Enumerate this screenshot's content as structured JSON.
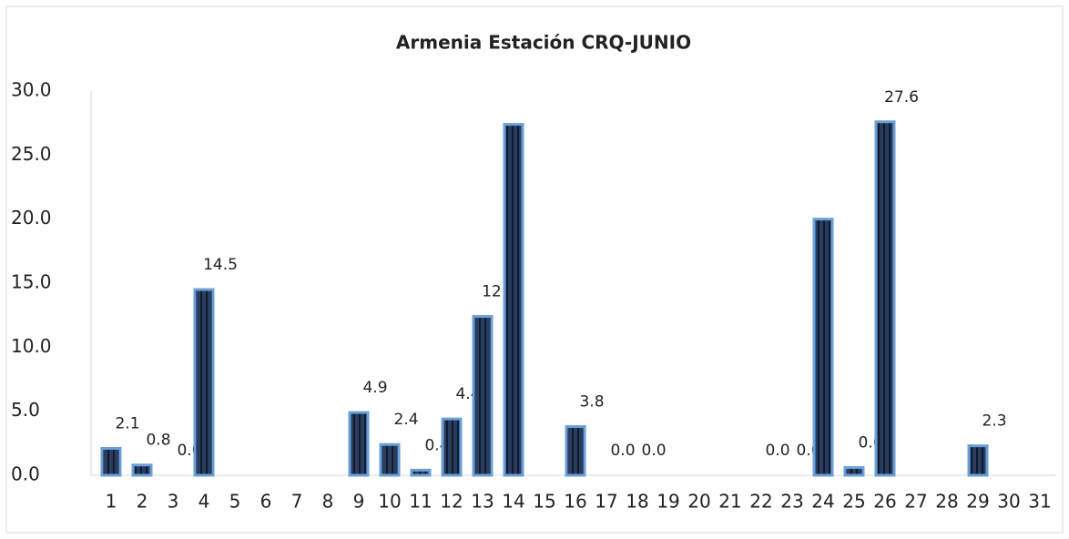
{
  "chart_data": {
    "type": "bar",
    "title": "Armenia Estación CRQ-JUNIO",
    "categories": [
      "1",
      "2",
      "3",
      "4",
      "5",
      "6",
      "7",
      "8",
      "9",
      "10",
      "11",
      "12",
      "13",
      "14",
      "15",
      "16",
      "17",
      "18",
      "19",
      "20",
      "21",
      "22",
      "23",
      "24",
      "25",
      "26",
      "27",
      "28",
      "29",
      "30",
      "31"
    ],
    "values": [
      2.1,
      0.8,
      0.0,
      14.5,
      null,
      null,
      null,
      null,
      4.9,
      2.4,
      0.4,
      4.4,
      12.4,
      27.4,
      null,
      3.8,
      0.0,
      0.0,
      null,
      null,
      null,
      0.0,
      0.0,
      20.0,
      0.6,
      27.6,
      null,
      null,
      2.3,
      null,
      null
    ],
    "value_labels": [
      "2.1",
      "0.8",
      "0.0",
      "14.5",
      null,
      null,
      null,
      null,
      "4.9",
      "2.4",
      "0.4",
      "4.4",
      "12.4",
      null,
      null,
      "3.8",
      "0.0",
      "0.0",
      null,
      null,
      null,
      "0.0",
      "0.0",
      null,
      "0.6",
      "27.6",
      null,
      null,
      "2.3",
      null,
      null
    ],
    "color": "#233452",
    "ylim": [
      0,
      30
    ],
    "yticks": [
      {
        "value": 0,
        "label": "0.0"
      },
      {
        "value": 5,
        "label": "5.0"
      },
      {
        "value": 10,
        "label": "10.0"
      },
      {
        "value": 15,
        "label": "15.0"
      },
      {
        "value": 20,
        "label": "20.0"
      },
      {
        "value": 25,
        "label": "25.0"
      },
      {
        "value": 30,
        "label": "30.0"
      }
    ],
    "grid": false
  }
}
